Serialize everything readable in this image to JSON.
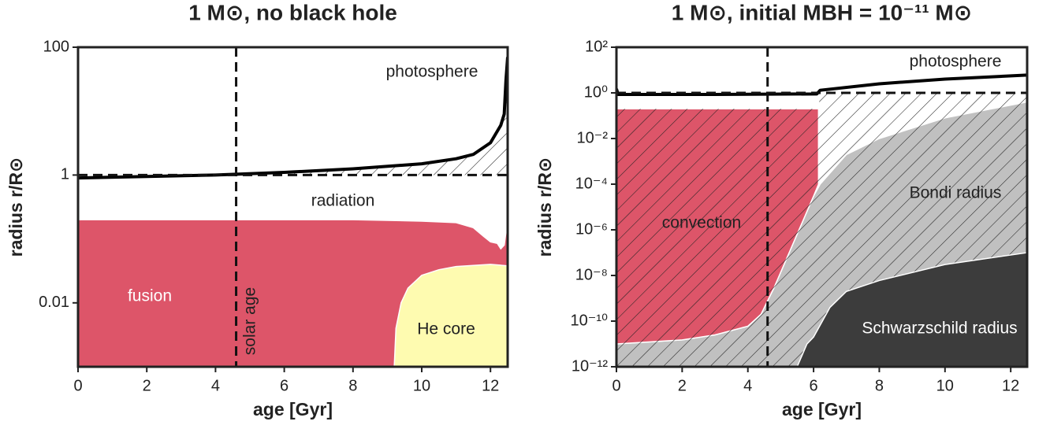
{
  "chart_data": [
    {
      "type": "area",
      "title": "1 M⊙, no black hole",
      "xlabel": "age [Gyr]",
      "ylabel": "radius r/R⊙",
      "yscale": "log",
      "xlim": [
        0,
        12.5
      ],
      "ylim": [
        0.001,
        100
      ],
      "xticks": [
        0,
        2,
        4,
        6,
        8,
        10,
        12
      ],
      "yticks": [
        100,
        1,
        0.01
      ],
      "series": [
        {
          "name": "fusion",
          "kind": "fill",
          "color": "#dd5569",
          "x": [
            0,
            2,
            4,
            6,
            8,
            10,
            11,
            11.5,
            11.8,
            12,
            12.2,
            12.3,
            12.4,
            12.5
          ],
          "upper": [
            0.2,
            0.2,
            0.2,
            0.2,
            0.2,
            0.19,
            0.18,
            0.15,
            0.11,
            0.09,
            0.085,
            0.07,
            0.08,
            0.2
          ]
        },
        {
          "name": "He core",
          "kind": "fill",
          "color": "#fefbb0",
          "x": [
            9.2,
            9.25,
            9.4,
            9.6,
            10,
            10.5,
            11,
            12,
            12.5
          ],
          "upper": [
            0.001,
            0.004,
            0.01,
            0.017,
            0.027,
            0.033,
            0.037,
            0.04,
            0.038
          ]
        },
        {
          "kind": "hatch",
          "color": "#222222",
          "x": [
            4,
            6,
            8,
            10,
            11,
            11.5,
            12,
            12.3,
            12.4,
            12.45,
            12.5
          ],
          "upper": [
            1.0,
            1.1,
            1.25,
            1.5,
            1.8,
            2.1,
            3.2,
            6,
            9,
            30,
            70
          ],
          "lower": [
            1,
            1,
            1,
            1,
            1,
            1,
            1,
            1,
            1,
            1,
            1
          ]
        },
        {
          "name": "photosphere",
          "kind": "line",
          "color": "#000000",
          "x": [
            0,
            2,
            4,
            6,
            8,
            10,
            11,
            11.5,
            12,
            12.3,
            12.4,
            12.45,
            12.5
          ],
          "values": [
            0.9,
            0.95,
            1.0,
            1.1,
            1.25,
            1.5,
            1.8,
            2.1,
            3.2,
            6,
            9,
            30,
            70
          ]
        }
      ],
      "hlines": [
        {
          "value": 1
        }
      ],
      "vlines": [
        {
          "value": 4.6,
          "name": "solar age"
        }
      ],
      "annotations": [
        "radiation"
      ]
    },
    {
      "type": "area",
      "title": "1 M⊙, initial MBH = 10⁻¹¹ M⊙",
      "xlabel": "age [Gyr]",
      "ylabel": "radius r/R⊙",
      "yscale": "log",
      "xlim": [
        0,
        12.5
      ],
      "ylim": [
        1e-12,
        100
      ],
      "xticks": [
        0,
        2,
        4,
        6,
        8,
        10,
        12
      ],
      "yticks": [
        {
          "value": 100,
          "label": "10²"
        },
        {
          "value": 1,
          "label": "10⁰"
        },
        {
          "value": 0.01,
          "label": "10⁻²"
        },
        {
          "value": 0.0001,
          "label": "10⁻⁴"
        },
        {
          "value": 1e-06,
          "label": "10⁻⁶"
        },
        {
          "value": 1e-08,
          "label": "10⁻⁸"
        },
        {
          "value": 1e-10,
          "label": "10⁻¹⁰"
        },
        {
          "value": 1e-12,
          "label": "10⁻¹²"
        }
      ],
      "series": [
        {
          "name": "Bondi radius",
          "kind": "fill",
          "color": "#c0c0c0",
          "x": [
            0,
            2,
            3,
            4,
            4.4,
            4.8,
            5.4,
            6.0,
            6.2,
            7,
            8,
            10,
            12.5
          ],
          "upper": [
            1e-11,
            1.5e-11,
            2.5e-11,
            6e-11,
            2e-10,
            3e-09,
            3e-07,
            3e-05,
            0.0001,
            0.002,
            0.01,
            0.08,
            0.4
          ]
        },
        {
          "name": "convection",
          "kind": "fill",
          "color": "#dd5569",
          "x": [
            0,
            2,
            3,
            4,
            4.4,
            4.8,
            5.4,
            6.0,
            6.15
          ],
          "upper": [
            0.2,
            0.2,
            0.2,
            0.2,
            0.2,
            0.2,
            0.2,
            0.2,
            0.2
          ],
          "lower": [
            1e-11,
            1.5e-11,
            2.5e-11,
            6e-11,
            2e-10,
            3e-09,
            3e-07,
            3e-05,
            0.0001
          ]
        },
        {
          "kind": "hatch",
          "color": "#222222",
          "x": [
            0,
            6.15,
            6.2,
            12.5
          ],
          "upper": [
            0.2,
            0.2,
            1,
            1
          ]
        },
        {
          "name": "Schwarzschild radius",
          "kind": "fill",
          "color": "#3c3c3c",
          "x": [
            5.5,
            5.8,
            6,
            6.5,
            7,
            8,
            10,
            12.5
          ],
          "upper": [
            1e-12,
            1e-11,
            2e-11,
            4e-10,
            2e-09,
            6e-09,
            3e-08,
            1e-07
          ]
        },
        {
          "name": "photosphere",
          "kind": "line",
          "color": "#000000",
          "x": [
            0,
            0.05,
            3,
            6.1,
            6.2,
            8,
            10,
            12.5
          ],
          "values": [
            1.5,
            0.85,
            0.85,
            0.9,
            1.3,
            2.5,
            4,
            6
          ]
        }
      ],
      "hlines": [
        {
          "value": 1
        }
      ],
      "vlines": [
        {
          "value": 4.6
        }
      ]
    }
  ]
}
